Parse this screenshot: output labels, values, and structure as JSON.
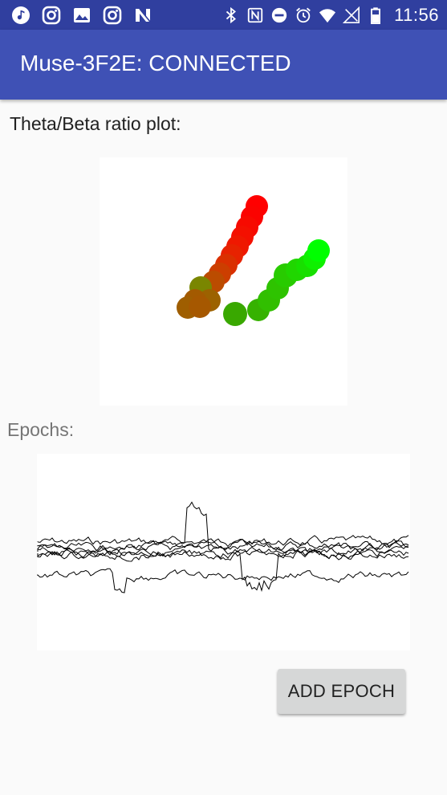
{
  "status_bar": {
    "time": "11:56",
    "left_icons": [
      "music-note-icon",
      "instagram-icon",
      "image-icon",
      "instagram-icon",
      "n-app-icon"
    ],
    "right_icons": [
      "bluetooth-icon",
      "nfc-icon",
      "do-not-disturb-icon",
      "alarm-icon",
      "wifi-icon",
      "no-signal-icon",
      "battery-icon"
    ],
    "background": "#303f9f"
  },
  "app_bar": {
    "title": "Muse-3F2E: CONNECTED",
    "background": "#3f51b5"
  },
  "ratio_plot": {
    "label": "Theta/Beta ratio plot:"
  },
  "epochs": {
    "label": "Epochs:"
  },
  "actions": {
    "add_epoch_label": "ADD EPOCH"
  }
}
